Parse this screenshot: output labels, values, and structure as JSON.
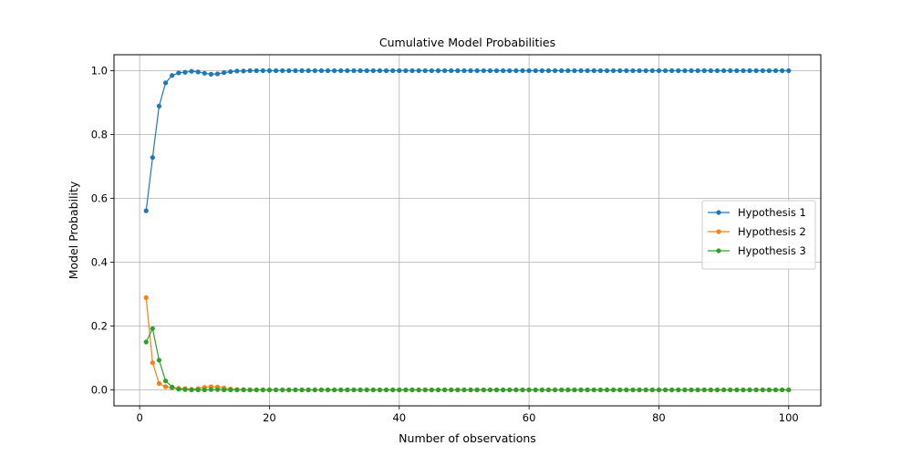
{
  "chart_data": {
    "type": "line",
    "title": "Cumulative Model Probabilities",
    "xlabel": "Number of observations",
    "ylabel": "Model Probability",
    "xlim": [
      -3.95,
      104.95
    ],
    "ylim": [
      -0.05,
      1.05
    ],
    "xticks": [
      0,
      20,
      40,
      60,
      80,
      100
    ],
    "yticks": [
      0.0,
      0.2,
      0.4,
      0.6,
      0.8,
      1.0
    ],
    "xtick_labels": [
      "0",
      "20",
      "40",
      "60",
      "80",
      "100"
    ],
    "ytick_labels": [
      "0.0",
      "0.2",
      "0.4",
      "0.6",
      "0.8",
      "1.0"
    ],
    "grid": true,
    "legend_position": "center-right",
    "x": [
      1,
      2,
      3,
      4,
      5,
      6,
      7,
      8,
      9,
      10,
      11,
      12,
      13,
      14,
      15,
      16,
      17,
      18,
      19,
      20,
      21,
      22,
      23,
      24,
      25,
      26,
      27,
      28,
      29,
      30,
      31,
      32,
      33,
      34,
      35,
      36,
      37,
      38,
      39,
      40,
      41,
      42,
      43,
      44,
      45,
      46,
      47,
      48,
      49,
      50,
      51,
      52,
      53,
      54,
      55,
      56,
      57,
      58,
      59,
      60,
      61,
      62,
      63,
      64,
      65,
      66,
      67,
      68,
      69,
      70,
      71,
      72,
      73,
      74,
      75,
      76,
      77,
      78,
      79,
      80,
      81,
      82,
      83,
      84,
      85,
      86,
      87,
      88,
      89,
      90,
      91,
      92,
      93,
      94,
      95,
      96,
      97,
      98,
      99,
      100
    ],
    "series": [
      {
        "name": "Hypothesis 1",
        "color": "#1f77b4",
        "values": [
          0.561,
          0.728,
          0.889,
          0.962,
          0.985,
          0.993,
          0.995,
          0.998,
          0.996,
          0.992,
          0.989,
          0.99,
          0.994,
          0.997,
          0.999,
          0.999,
          1,
          1,
          1,
          1,
          1,
          1,
          1,
          1,
          1,
          1,
          1,
          1,
          1,
          1,
          1,
          1,
          1,
          1,
          1,
          1,
          1,
          1,
          1,
          1,
          1,
          1,
          1,
          1,
          1,
          1,
          1,
          1,
          1,
          1,
          1,
          1,
          1,
          1,
          1,
          1,
          1,
          1,
          1,
          1,
          1,
          1,
          1,
          1,
          1,
          1,
          1,
          1,
          1,
          1,
          1,
          1,
          1,
          1,
          1,
          1,
          1,
          1,
          1,
          1,
          1,
          1,
          1,
          1,
          1,
          1,
          1,
          1,
          1,
          1,
          1,
          1,
          1,
          1,
          1,
          1,
          1,
          1,
          1,
          1
        ]
      },
      {
        "name": "Hypothesis 2",
        "color": "#ff7f0e",
        "values": [
          0.289,
          0.085,
          0.02,
          0.01,
          0.006,
          0.005,
          0.004,
          0.002,
          0.004,
          0.008,
          0.01,
          0.009,
          0.006,
          0.003,
          0.001,
          0.001,
          0,
          0,
          0,
          0,
          0,
          0,
          0,
          0,
          0,
          0,
          0,
          0,
          0,
          0,
          0,
          0,
          0,
          0,
          0,
          0,
          0,
          0,
          0,
          0,
          0,
          0,
          0,
          0,
          0,
          0,
          0,
          0,
          0,
          0,
          0,
          0,
          0,
          0,
          0,
          0,
          0,
          0,
          0,
          0,
          0,
          0,
          0,
          0,
          0,
          0,
          0,
          0,
          0,
          0,
          0,
          0,
          0,
          0,
          0,
          0,
          0,
          0,
          0,
          0,
          0,
          0,
          0,
          0,
          0,
          0,
          0,
          0,
          0,
          0,
          0,
          0,
          0,
          0,
          0,
          0,
          0,
          0,
          0,
          0
        ]
      },
      {
        "name": "Hypothesis 3",
        "color": "#2ca02c",
        "values": [
          0.15,
          0.192,
          0.093,
          0.028,
          0.009,
          0.002,
          0.001,
          0,
          0,
          0,
          0.001,
          0.001,
          0,
          0,
          0,
          0,
          0,
          0,
          0,
          0,
          0,
          0,
          0,
          0,
          0,
          0,
          0,
          0,
          0,
          0,
          0,
          0,
          0,
          0,
          0,
          0,
          0,
          0,
          0,
          0,
          0,
          0,
          0,
          0,
          0,
          0,
          0,
          0,
          0,
          0,
          0,
          0,
          0,
          0,
          0,
          0,
          0,
          0,
          0,
          0,
          0,
          0,
          0,
          0,
          0,
          0,
          0,
          0,
          0,
          0,
          0,
          0,
          0,
          0,
          0,
          0,
          0,
          0,
          0,
          0,
          0,
          0,
          0,
          0,
          0,
          0,
          0,
          0,
          0,
          0,
          0,
          0,
          0,
          0,
          0,
          0,
          0,
          0,
          0,
          0
        ]
      }
    ]
  }
}
